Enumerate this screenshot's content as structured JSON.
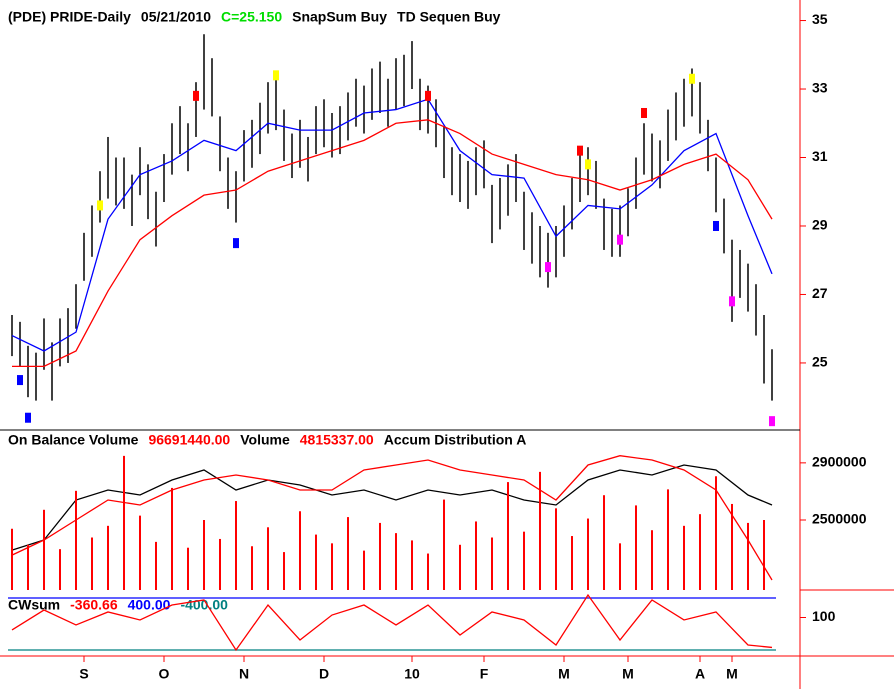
{
  "chart_data": [
    {
      "type": "ohlc",
      "title": "(PDE) PRIDE-Daily",
      "date": "05/21/2010",
      "close_label": "C=25.150",
      "signals": [
        "SnapSum Buy",
        "TD Sequen Buy"
      ],
      "xlim": [
        -0.5,
        95.5
      ],
      "ylim": [
        23.1,
        35.6
      ],
      "yticks": [
        35,
        33,
        31,
        29,
        27,
        25
      ],
      "bars": {
        "color": "#000000",
        "low": [
          25.2,
          24.9,
          24.0,
          23.9,
          24.8,
          23.9,
          24.9,
          25.0,
          26.0,
          27.4,
          28.1,
          29.1,
          29.8,
          29.6,
          29.5,
          29.0,
          29.9,
          29.2,
          28.4,
          29.7,
          30.5,
          31.1,
          30.6,
          31.6,
          32.4,
          32.2,
          30.6,
          29.5,
          29.1,
          30.3,
          30.7,
          31.1,
          31.7,
          31.8,
          30.9,
          30.4,
          30.7,
          30.3,
          31.1,
          31.3,
          31.0,
          31.1,
          31.5,
          31.9,
          31.7,
          32.1,
          32.3,
          31.9,
          32.4,
          32.5,
          33.0,
          31.8,
          31.7,
          31.3,
          30.4,
          29.9,
          29.7,
          29.5,
          29.9,
          30.1,
          28.5,
          28.9,
          29.3,
          29.7,
          28.3,
          27.9,
          27.5,
          27.2,
          27.5,
          28.1,
          28.9,
          29.7,
          29.9,
          29.5,
          28.3,
          28.1,
          28.1,
          28.7,
          29.5,
          30.5,
          30.3,
          30.1,
          30.9,
          31.5,
          31.9,
          32.2,
          31.7,
          30.6,
          29.4,
          28.2,
          26.2,
          26.9,
          26.5,
          25.8,
          24.4,
          23.9
        ],
        "high": [
          26.4,
          26.2,
          25.5,
          25.3,
          26.3,
          25.6,
          26.3,
          26.6,
          27.3,
          28.8,
          29.6,
          30.6,
          31.6,
          31.0,
          31.0,
          30.5,
          31.3,
          30.8,
          30.0,
          31.1,
          32.0,
          32.5,
          32.0,
          33.2,
          34.6,
          33.9,
          32.2,
          31.0,
          30.6,
          31.8,
          32.1,
          32.6,
          33.2,
          33.5,
          32.4,
          31.7,
          32.1,
          31.6,
          32.5,
          32.7,
          32.3,
          32.5,
          32.9,
          33.3,
          33.1,
          33.6,
          33.8,
          33.3,
          33.9,
          34.0,
          34.4,
          33.3,
          33.1,
          32.7,
          31.9,
          31.3,
          31.1,
          30.9,
          31.3,
          31.5,
          30.2,
          30.4,
          30.8,
          31.1,
          30.0,
          29.4,
          29.0,
          28.8,
          29.0,
          29.6,
          30.4,
          31.1,
          31.3,
          30.9,
          29.8,
          29.5,
          29.6,
          30.1,
          31.0,
          32.0,
          31.7,
          31.5,
          32.4,
          32.9,
          33.3,
          33.6,
          33.2,
          32.1,
          31.0,
          29.8,
          28.6,
          28.3,
          27.9,
          27.3,
          26.4,
          25.4
        ]
      },
      "series": [
        {
          "color": "#0000ff",
          "x": [
            0,
            4,
            8,
            12,
            16,
            20,
            24,
            28,
            32,
            36,
            40,
            44,
            48,
            52,
            56,
            60,
            64,
            68,
            72,
            76,
            80,
            84,
            88,
            92,
            95
          ],
          "values": [
            25.8,
            25.35,
            25.9,
            29.2,
            30.5,
            30.9,
            31.5,
            31.2,
            32.0,
            31.8,
            31.8,
            32.3,
            32.4,
            32.7,
            31.2,
            30.5,
            30.4,
            28.7,
            29.6,
            29.5,
            30.2,
            31.2,
            31.7,
            29.3,
            27.6
          ]
        },
        {
          "color": "#ff0000",
          "x": [
            0,
            4,
            8,
            12,
            16,
            20,
            24,
            28,
            32,
            36,
            40,
            44,
            48,
            52,
            56,
            60,
            64,
            68,
            72,
            76,
            80,
            84,
            88,
            92,
            95
          ],
          "values": [
            24.9,
            24.9,
            25.35,
            27.1,
            28.6,
            29.3,
            29.9,
            30.05,
            30.6,
            30.9,
            31.2,
            31.5,
            32.0,
            32.1,
            31.7,
            31.1,
            30.8,
            30.5,
            30.35,
            30.05,
            30.35,
            30.8,
            31.1,
            30.35,
            29.2
          ]
        }
      ],
      "markers": [
        {
          "x": 11,
          "y": 29.6,
          "color": "#ffff00"
        },
        {
          "x": 23,
          "y": 32.8,
          "color": "#ff0000"
        },
        {
          "x": 28,
          "y": 28.5,
          "color": "#0000ff"
        },
        {
          "x": 33,
          "y": 33.4,
          "color": "#ffff00"
        },
        {
          "x": 1,
          "y": 24.5,
          "color": "#0000ff"
        },
        {
          "x": 2,
          "y": 23.4,
          "color": "#0000ff"
        },
        {
          "x": 52,
          "y": 32.8,
          "color": "#ff0000"
        },
        {
          "x": 67,
          "y": 27.8,
          "color": "#ff00ff"
        },
        {
          "x": 71,
          "y": 31.2,
          "color": "#ff0000"
        },
        {
          "x": 72,
          "y": 30.8,
          "color": "#ffff00"
        },
        {
          "x": 76,
          "y": 28.6,
          "color": "#ff00ff"
        },
        {
          "x": 79,
          "y": 32.3,
          "color": "#ff0000"
        },
        {
          "x": 85,
          "y": 33.3,
          "color": "#ffff00"
        },
        {
          "x": 88,
          "y": 29.0,
          "color": "#0000ff"
        },
        {
          "x": 90,
          "y": 26.8,
          "color": "#ff00ff"
        },
        {
          "x": 95,
          "y": 23.3,
          "color": "#ff00ff"
        }
      ]
    },
    {
      "type": "indicator",
      "legend": [
        {
          "name": "On Balance Volume",
          "value": "96691440.00",
          "color": "#ff0000"
        },
        {
          "name": "Volume",
          "value": "4815337.00",
          "color": "#ff0000"
        },
        {
          "name": "Accum Distribution A"
        }
      ],
      "xlim": [
        -0.5,
        95.5
      ],
      "ylim": [
        2010000,
        2990000
      ],
      "yticks": [
        2900000,
        2500000
      ],
      "y2lim": [
        0,
        9600000
      ],
      "series": [
        {
          "kind": "line",
          "color": "#000000",
          "x": [
            0,
            4,
            8,
            12,
            16,
            20,
            24,
            28,
            32,
            36,
            40,
            44,
            48,
            52,
            56,
            60,
            64,
            68,
            72,
            76,
            80,
            84,
            88,
            92,
            95
          ],
          "values": [
            2289000,
            2360000,
            2640000,
            2710000,
            2675000,
            2780000,
            2850000,
            2710000,
            2780000,
            2745000,
            2675000,
            2710000,
            2640000,
            2710000,
            2675000,
            2710000,
            2640000,
            2605000,
            2780000,
            2850000,
            2815000,
            2885000,
            2850000,
            2675000,
            2605000
          ]
        },
        {
          "kind": "line",
          "color": "#ff0000",
          "x": [
            0,
            4,
            8,
            12,
            16,
            20,
            24,
            28,
            32,
            36,
            40,
            44,
            48,
            52,
            56,
            60,
            64,
            68,
            72,
            76,
            80,
            84,
            88,
            92,
            95
          ],
          "values": [
            2254000,
            2360000,
            2500000,
            2640000,
            2605000,
            2710000,
            2780000,
            2815000,
            2780000,
            2710000,
            2710000,
            2850000,
            2885000,
            2920000,
            2850000,
            2815000,
            2780000,
            2640000,
            2885000,
            2950000,
            2920000,
            2850000,
            2710000,
            2360000,
            2080000
          ]
        },
        {
          "kind": "bar",
          "axis": "y2",
          "color": "#ff0000",
          "x": [
            0,
            2,
            4,
            6,
            8,
            10,
            12,
            14,
            16,
            18,
            20,
            22,
            24,
            26,
            28,
            30,
            32,
            34,
            36,
            38,
            40,
            42,
            44,
            46,
            48,
            50,
            52,
            54,
            56,
            58,
            60,
            62,
            64,
            66,
            68,
            70,
            72,
            74,
            76,
            78,
            80,
            82,
            84,
            86,
            88,
            90,
            92,
            94
          ],
          "values": [
            4200000,
            3100000,
            5500000,
            2800000,
            6800000,
            3600000,
            4400000,
            9200000,
            5100000,
            3300000,
            7000000,
            2900000,
            4800000,
            3500000,
            6100000,
            3000000,
            4300000,
            2600000,
            5400000,
            3800000,
            3200000,
            5000000,
            2700000,
            4600000,
            3900000,
            3400000,
            2500000,
            6200000,
            3100000,
            4700000,
            3600000,
            7400000,
            4000000,
            8100000,
            5600000,
            3700000,
            4900000,
            6500000,
            3200000,
            5800000,
            4100000,
            6900000,
            4400000,
            5200000,
            7800000,
            5900000,
            4600000,
            4800000
          ]
        }
      ]
    },
    {
      "type": "oscillator",
      "legend": [
        {
          "name": "CWsum",
          "color": "#000000"
        },
        {
          "name": "-360.66",
          "color": "#ff0000"
        },
        {
          "name": "400.00",
          "color": "#0000ff"
        },
        {
          "name": "-400.00",
          "color": "#008080"
        }
      ],
      "xlim": [
        -0.5,
        95.5
      ],
      "ylim": [
        -477,
        523
      ],
      "yticks": [
        100
      ],
      "levels": [
        {
          "value": 400,
          "color": "#0000ff"
        },
        {
          "value": -400,
          "color": "#008080"
        }
      ],
      "series": [
        {
          "kind": "line",
          "color": "#ff0000",
          "x": [
            0,
            4,
            8,
            12,
            16,
            20,
            24,
            28,
            32,
            36,
            40,
            44,
            48,
            52,
            56,
            60,
            64,
            68,
            72,
            76,
            80,
            84,
            88,
            92,
            95
          ],
          "values": [
            -92,
            215,
            -15,
            185,
            62,
            292,
            370,
            -400,
            292,
            -246,
            138,
            292,
            -15,
            292,
            -169,
            185,
            62,
            -323,
            446,
            -246,
            370,
            62,
            185,
            -323,
            -360.66
          ]
        }
      ],
      "xticks": [
        {
          "value": 9,
          "label": "S"
        },
        {
          "value": 19,
          "label": "O"
        },
        {
          "value": 29,
          "label": "N"
        },
        {
          "value": 39,
          "label": "D"
        },
        {
          "value": 50,
          "label": "10"
        },
        {
          "value": 59,
          "label": "F"
        },
        {
          "value": 69,
          "label": "M"
        },
        {
          "value": 77,
          "label": "M"
        },
        {
          "value": 86,
          "label": "A"
        },
        {
          "value": 90,
          "label": "M"
        }
      ]
    }
  ]
}
